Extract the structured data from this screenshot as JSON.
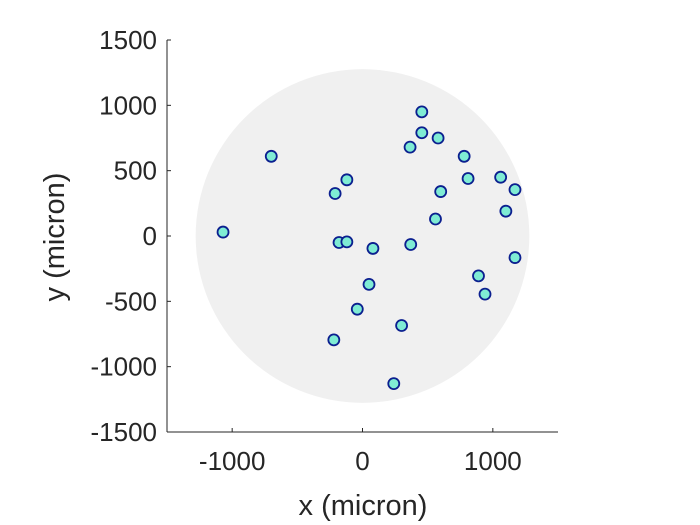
{
  "chart_data": {
    "type": "scatter",
    "xlabel": "x (micron)",
    "ylabel": "y (micron)",
    "xlim": [
      -1500,
      1500
    ],
    "ylim": [
      -1500,
      1500
    ],
    "xticks": [
      -1000,
      0,
      1000
    ],
    "xtick_labels": [
      "-1000",
      "0",
      "1000"
    ],
    "yticks": [
      1500,
      1000,
      500,
      0,
      -500,
      -1000,
      -1500
    ],
    "ytick_labels": [
      "1500",
      "1000",
      "500",
      "0",
      "-500",
      "-1000",
      "-1500"
    ],
    "grid": false,
    "region": {
      "shape": "circle",
      "center": [
        0,
        0
      ],
      "radius": 1280,
      "color": "#f0f0f0"
    },
    "marker": {
      "face_color": "#7fecd4",
      "edge_color": "#0b1f8f"
    },
    "points": [
      {
        "x": 455,
        "y": 950
      },
      {
        "x": 455,
        "y": 790
      },
      {
        "x": 580,
        "y": 750
      },
      {
        "x": 365,
        "y": 680
      },
      {
        "x": -700,
        "y": 610
      },
      {
        "x": 780,
        "y": 610
      },
      {
        "x": 1060,
        "y": 450
      },
      {
        "x": 810,
        "y": 440
      },
      {
        "x": -120,
        "y": 430
      },
      {
        "x": 1170,
        "y": 355
      },
      {
        "x": 600,
        "y": 340
      },
      {
        "x": -210,
        "y": 325
      },
      {
        "x": 1100,
        "y": 190
      },
      {
        "x": 560,
        "y": 130
      },
      {
        "x": -1070,
        "y": 30
      },
      {
        "x": -180,
        "y": -50
      },
      {
        "x": -120,
        "y": -45
      },
      {
        "x": 80,
        "y": -95
      },
      {
        "x": 370,
        "y": -65
      },
      {
        "x": 1170,
        "y": -165
      },
      {
        "x": 890,
        "y": -305
      },
      {
        "x": 50,
        "y": -370
      },
      {
        "x": 940,
        "y": -445
      },
      {
        "x": -40,
        "y": -560
      },
      {
        "x": 300,
        "y": -685
      },
      {
        "x": -220,
        "y": -795
      },
      {
        "x": 240,
        "y": -1130
      }
    ]
  }
}
